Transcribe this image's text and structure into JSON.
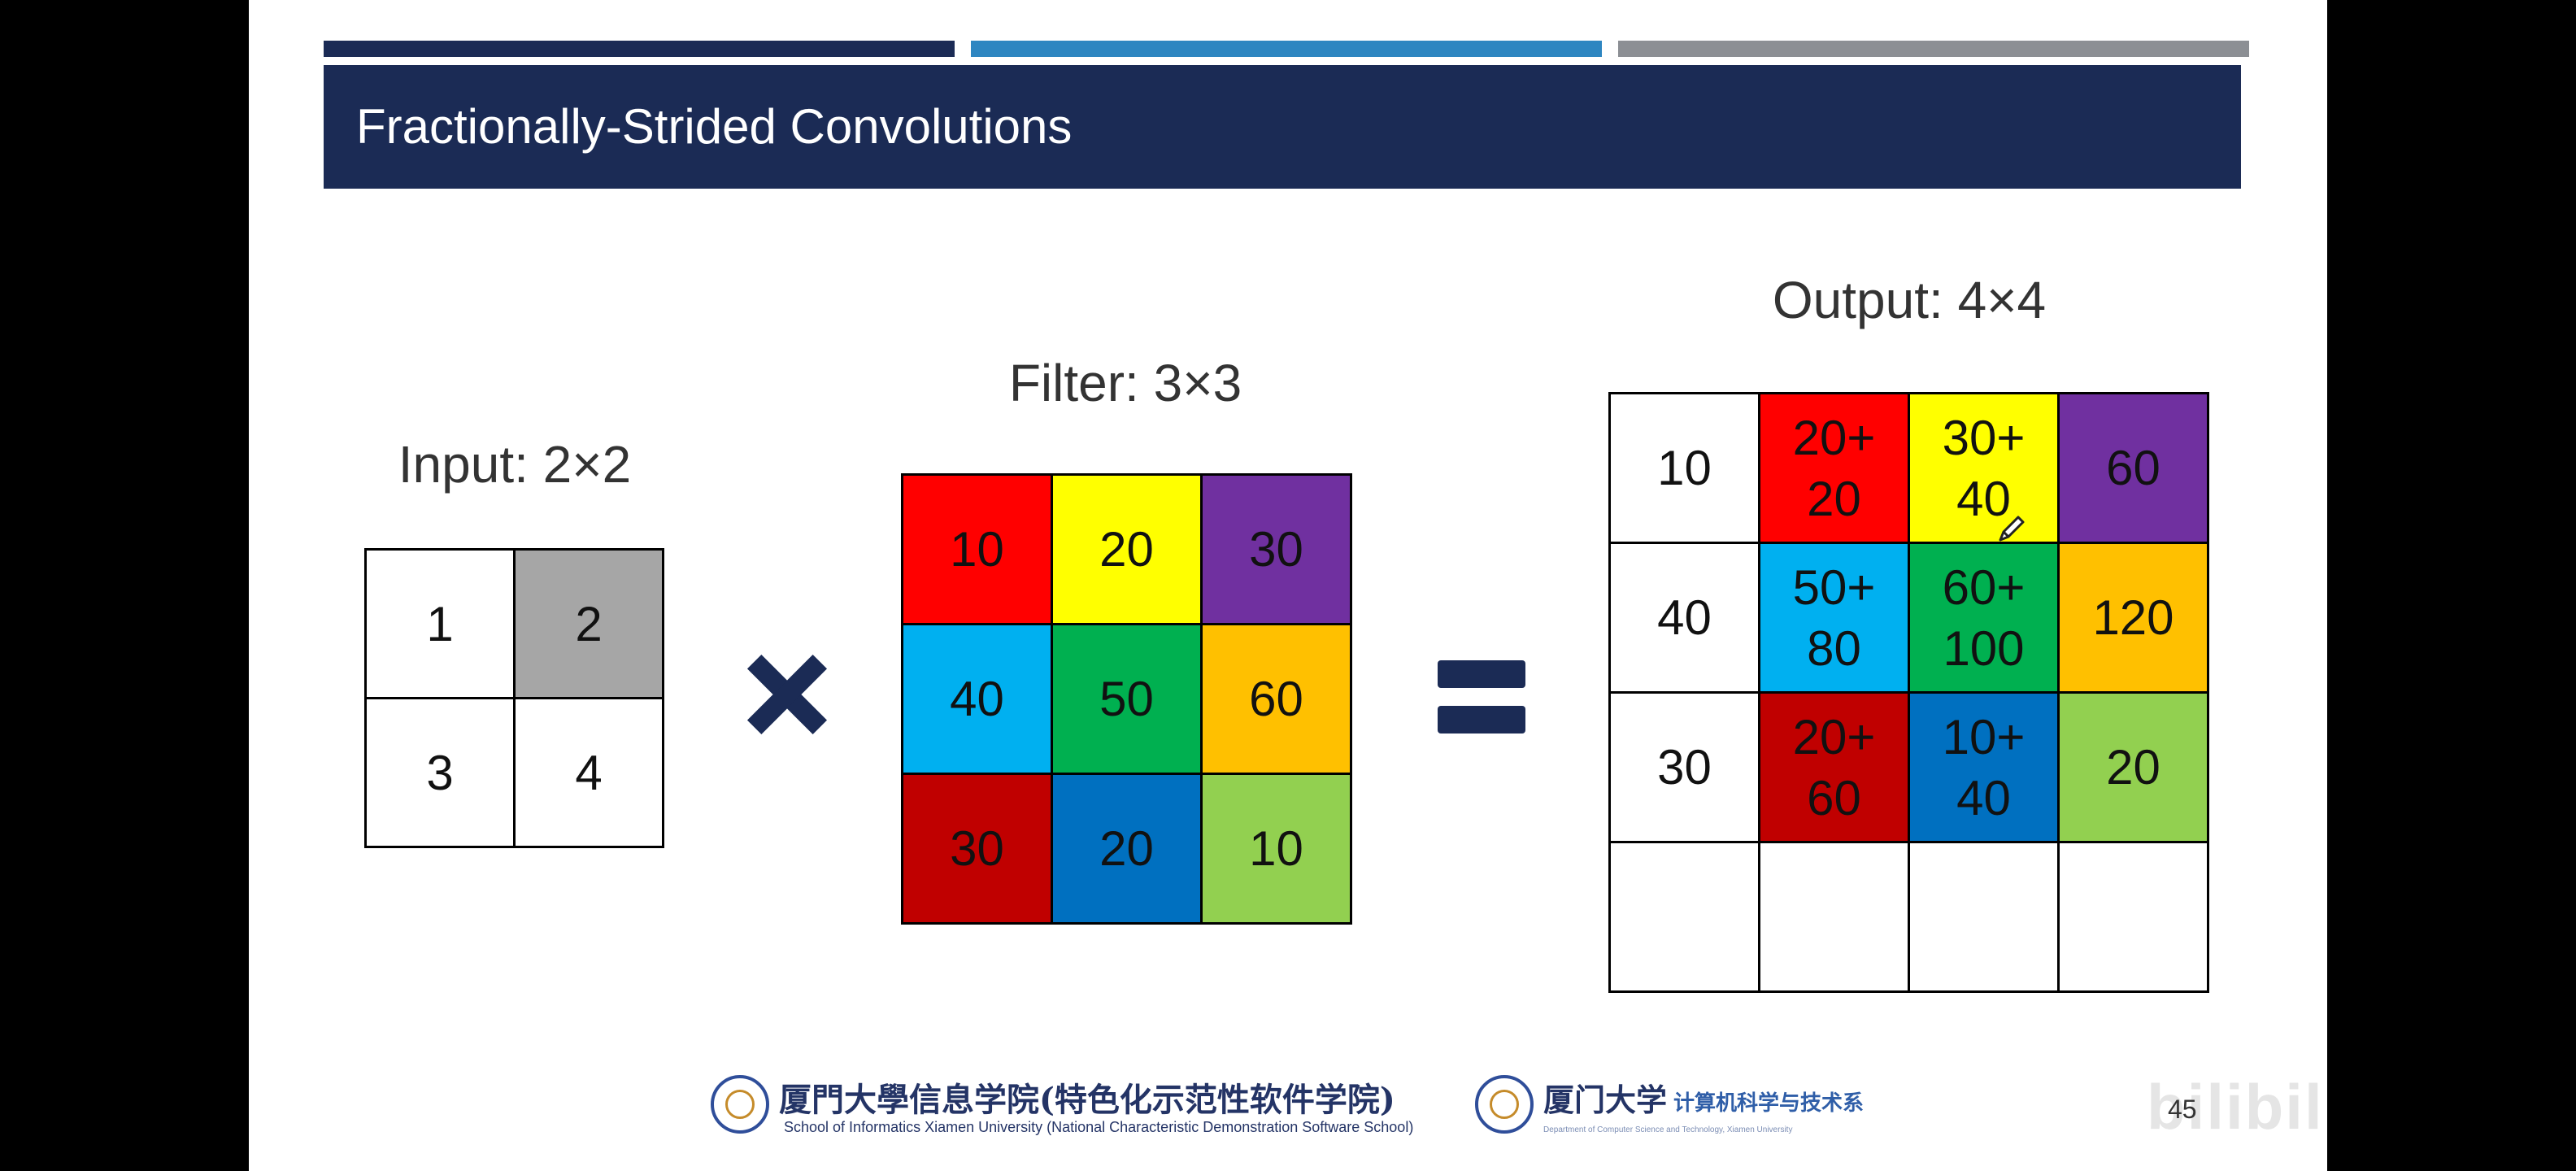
{
  "slide": {
    "title": "Fractionally-Strided Convolutions",
    "page_number": "45",
    "top_bar_colors": [
      "#1b2b55",
      "#2e86c1",
      "#8c8f94"
    ]
  },
  "input": {
    "label": "Input: 2×2",
    "cells": [
      {
        "text": "1",
        "color": "#ffffff"
      },
      {
        "text": "2",
        "color": "#a6a6a6"
      },
      {
        "text": "3",
        "color": "#ffffff"
      },
      {
        "text": "4",
        "color": "#ffffff"
      }
    ]
  },
  "filter": {
    "label": "Filter: 3×3",
    "cells": [
      {
        "text": "10",
        "color": "#ff0000"
      },
      {
        "text": "20",
        "color": "#ffff00"
      },
      {
        "text": "30",
        "color": "#7030a0"
      },
      {
        "text": "40",
        "color": "#00b0f0"
      },
      {
        "text": "50",
        "color": "#00b050"
      },
      {
        "text": "60",
        "color": "#ffc000"
      },
      {
        "text": "30",
        "color": "#c00000"
      },
      {
        "text": "20",
        "color": "#0070c0"
      },
      {
        "text": "10",
        "color": "#92d050"
      }
    ]
  },
  "output": {
    "label": "Output: 4×4",
    "cells": [
      {
        "text": "10",
        "color": "#ffffff"
      },
      {
        "text": "20+\n20",
        "color": "#ff0000"
      },
      {
        "text": "30+\n40",
        "color": "#ffff00"
      },
      {
        "text": "60",
        "color": "#7030a0"
      },
      {
        "text": "40",
        "color": "#ffffff"
      },
      {
        "text": "50+\n80",
        "color": "#00b0f0"
      },
      {
        "text": "60+\n100",
        "color": "#00b050"
      },
      {
        "text": "120",
        "color": "#ffc000"
      },
      {
        "text": "30",
        "color": "#ffffff"
      },
      {
        "text": "20+\n60",
        "color": "#c00000"
      },
      {
        "text": "10+\n40",
        "color": "#0070c0"
      },
      {
        "text": "20",
        "color": "#92d050"
      },
      {
        "text": "",
        "color": "#ffffff"
      },
      {
        "text": "",
        "color": "#ffffff"
      },
      {
        "text": "",
        "color": "#ffffff"
      },
      {
        "text": "",
        "color": "#ffffff"
      }
    ]
  },
  "operators": {
    "times_color": "#1b2b55",
    "equals_color": "#1b2b55"
  },
  "footer": {
    "school_cn": "厦門大學信息学院(特色化示范性软件学院)",
    "school_en": "School of Informatics Xiamen University (National Characteristic Demonstration Software School)",
    "dept_cn_logo": "厦门大学",
    "dept_cn": "计算机科学与技术系",
    "dept_en": "Department of Computer Science and Technology, Xiamen University"
  },
  "watermark": {
    "text": "bilibili"
  }
}
